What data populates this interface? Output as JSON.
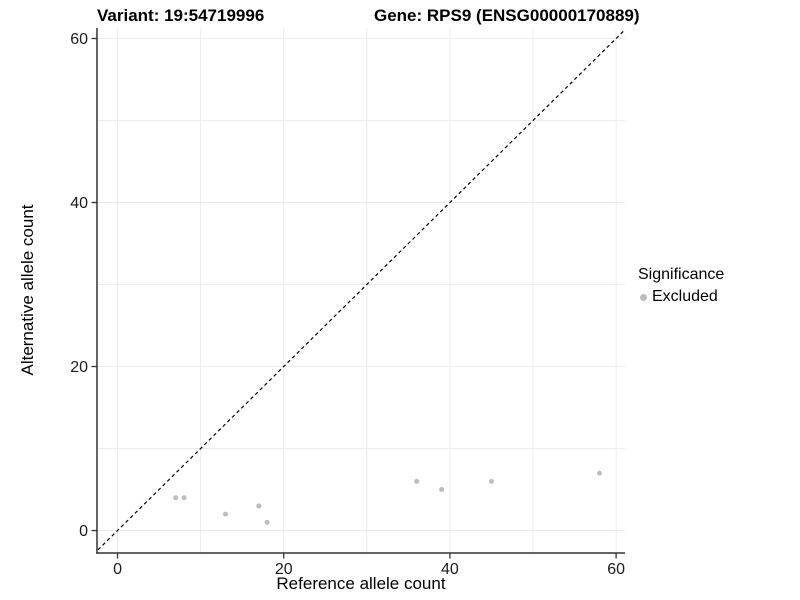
{
  "chart_data": {
    "type": "scatter",
    "title_left": "Variant: 19:54719996",
    "title_right": "Gene: RPS9 (ENSG00000170889)",
    "xlabel": "Reference allele count",
    "ylabel": "Alternative allele count",
    "xlim": [
      -2.47,
      61.07
    ],
    "ylim": [
      -2.74,
      61.28
    ],
    "x_ticks": [
      0,
      20,
      40,
      60
    ],
    "y_ticks": [
      0,
      20,
      40,
      60
    ],
    "x_tick_labels": [
      "0",
      "20",
      "40",
      "60"
    ],
    "y_tick_labels": [
      "0",
      "20",
      "40",
      "60"
    ],
    "grid": true,
    "grid_values": [
      0,
      10,
      20,
      30,
      40,
      50,
      60
    ],
    "grid_color": "#ececec",
    "axis_color": "#333333",
    "tick_label_color": "#1a1a1a",
    "identity_line": {
      "style": "dashed",
      "slope": 1,
      "intercept": 0,
      "color": "#000000"
    },
    "series": [
      {
        "name": "Excluded",
        "color": "#bdbdbd",
        "points": [
          [
            7,
            4
          ],
          [
            8,
            4
          ],
          [
            13,
            2
          ],
          [
            17,
            3
          ],
          [
            18,
            1
          ],
          [
            36,
            6
          ],
          [
            39,
            5
          ],
          [
            45,
            6
          ],
          [
            58,
            7
          ]
        ]
      }
    ],
    "legend": {
      "position": "right",
      "title": "Significance",
      "items": [
        {
          "label": "Excluded",
          "color": "#bdbdbd"
        }
      ]
    }
  }
}
